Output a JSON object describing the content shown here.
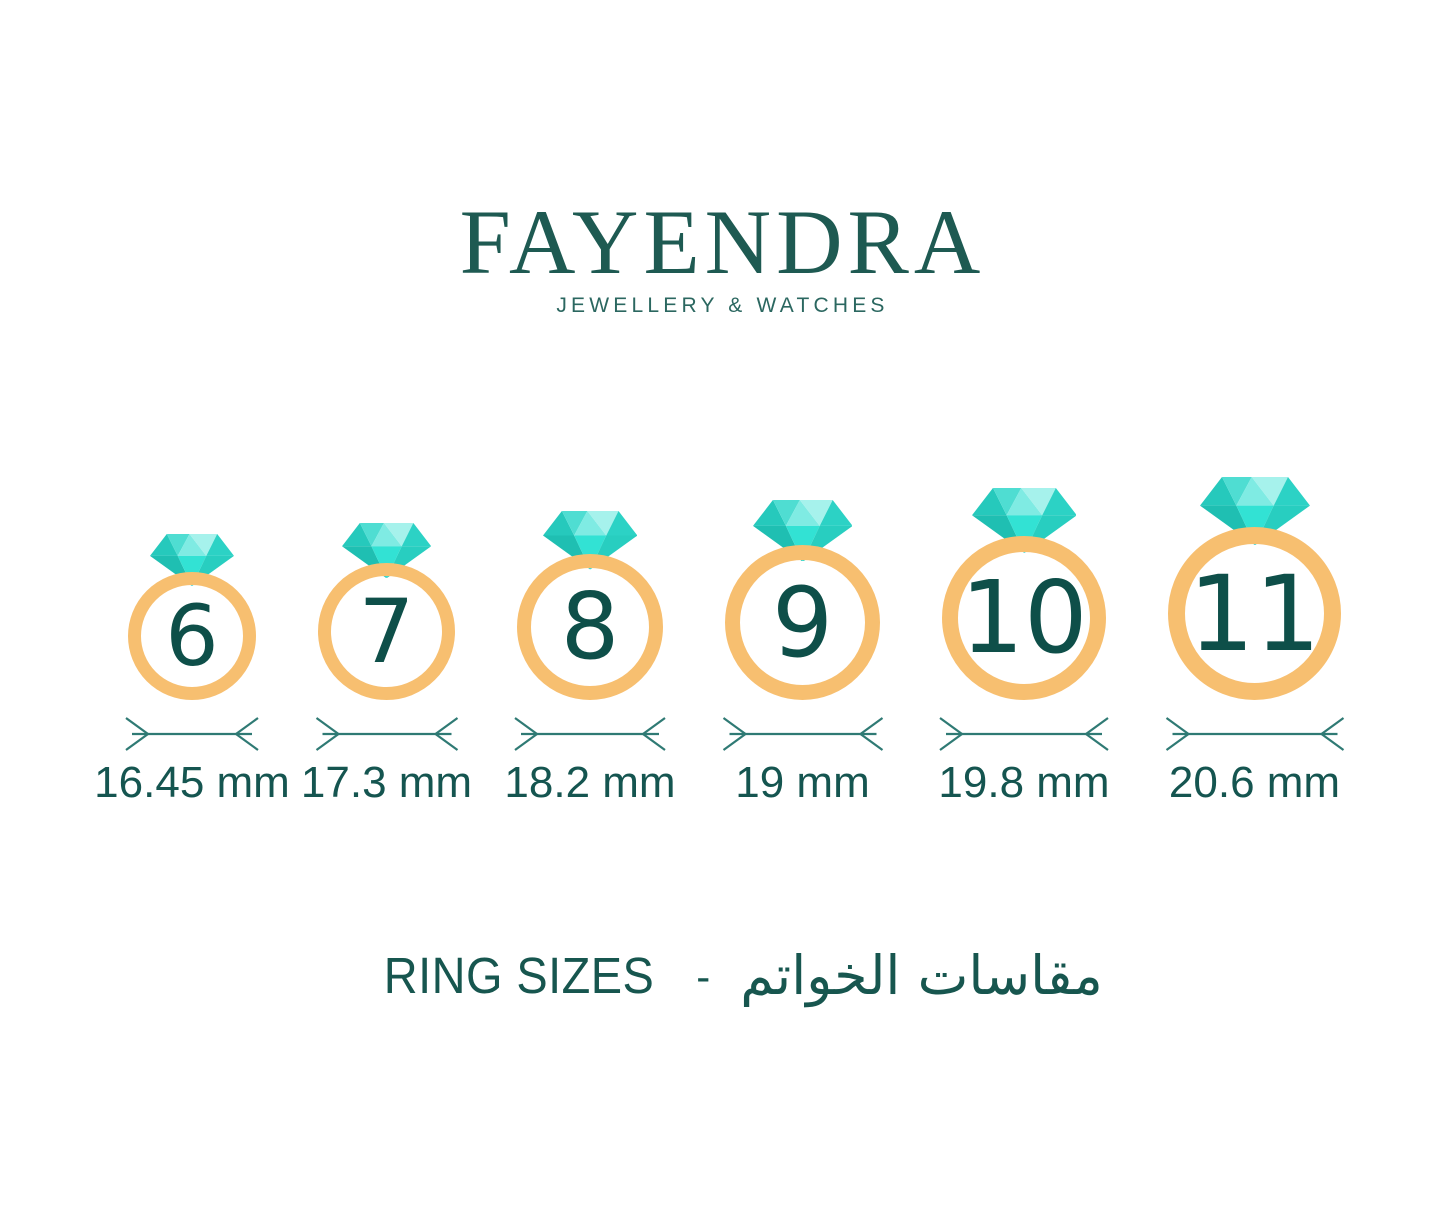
{
  "brand": {
    "name": "FAYENDRA",
    "tagline": "JEWELLERY & WATCHES"
  },
  "rings": [
    {
      "size": "6",
      "diameter_label": "16.45 mm"
    },
    {
      "size": "7",
      "diameter_label": "17.3 mm"
    },
    {
      "size": "8",
      "diameter_label": "18.2 mm"
    },
    {
      "size": "9",
      "diameter_label": "19 mm"
    },
    {
      "size": "10",
      "diameter_label": "19.8 mm"
    },
    {
      "size": "11",
      "diameter_label": "20.6 mm"
    }
  ],
  "footer": {
    "title_en": "RING SIZES",
    "separator": "-",
    "title_ar": "مقاسات الخواتم"
  },
  "colors": {
    "brand_teal": "#1E5A52",
    "number_teal": "#0E4F49",
    "label_teal": "#155550",
    "band_gold": "#F7BF70",
    "diamond_turquoise": "#32E2D4",
    "dimension_line": "#2F7A74"
  },
  "icons": {
    "diamond": "diamond-gem-icon",
    "dimension": "diameter-dimension-arrows"
  },
  "chart_data": {
    "type": "table",
    "title": "RING SIZES - مقاسات الخواتم",
    "columns": [
      "ring_size",
      "inner_diameter"
    ],
    "rows": [
      [
        "6",
        "16.45 mm"
      ],
      [
        "7",
        "17.3 mm"
      ],
      [
        "8",
        "18.2 mm"
      ],
      [
        "9",
        "19 mm"
      ],
      [
        "10",
        "19.8 mm"
      ],
      [
        "11",
        "20.6 mm"
      ]
    ]
  }
}
